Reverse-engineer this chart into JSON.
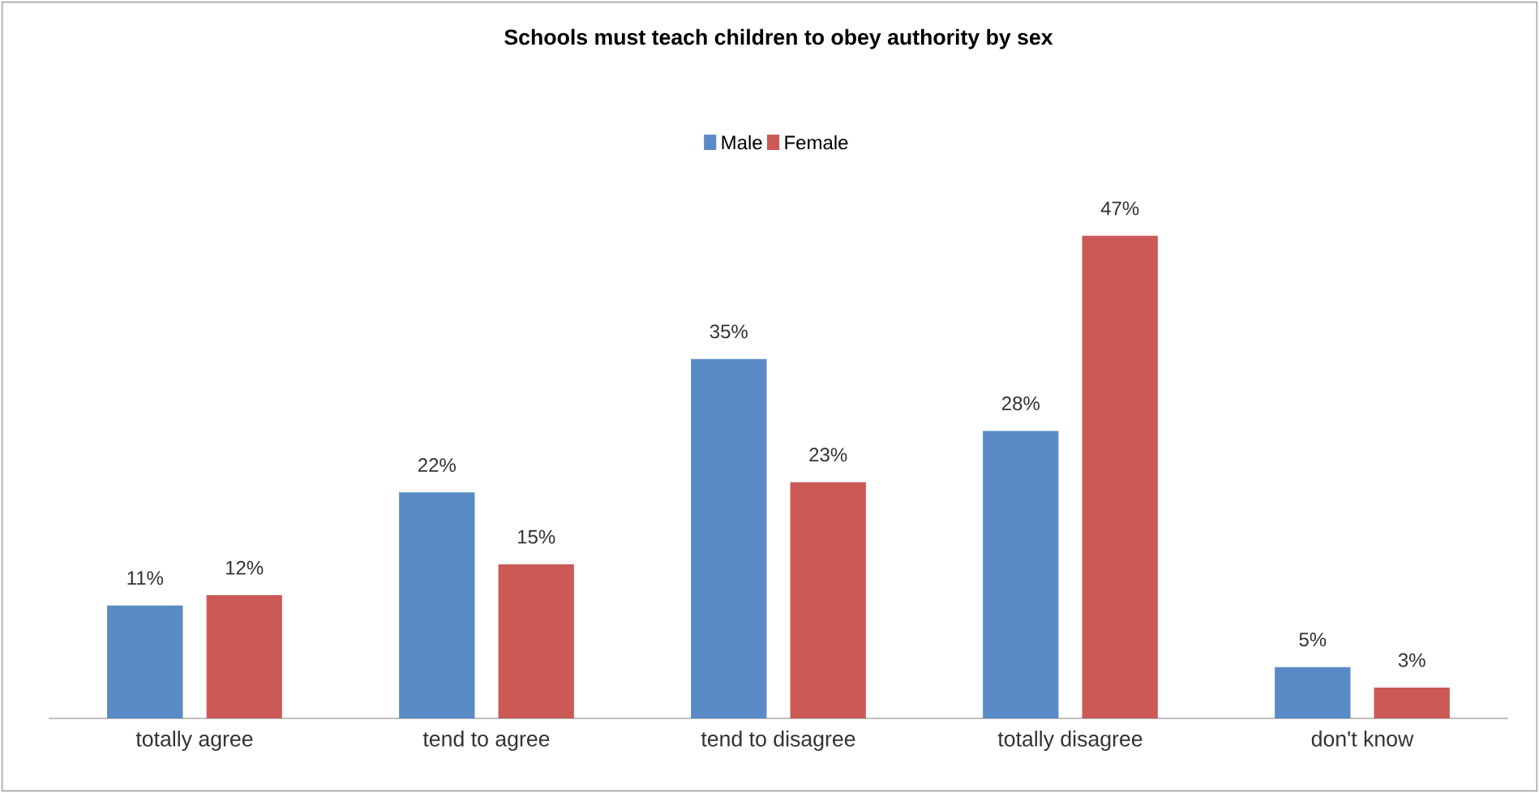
{
  "chart_data": {
    "type": "bar",
    "title": "Schools must teach children to obey authority by sex",
    "categories": [
      "totally agree",
      "tend to agree",
      "tend to disagree",
      "totally disagree",
      "don't know"
    ],
    "series": [
      {
        "name": "Male",
        "color": "#5b8bc6",
        "values": [
          11,
          22,
          35,
          28,
          5
        ],
        "value_labels": [
          "11%",
          "22%",
          "35%",
          "28%",
          "5%"
        ]
      },
      {
        "name": "Female",
        "color": "#cb5a57",
        "values": [
          12,
          15,
          23,
          47,
          3
        ],
        "value_labels": [
          "12%",
          "15%",
          "23%",
          "47%",
          "3%"
        ]
      }
    ],
    "legend": "top"
  }
}
